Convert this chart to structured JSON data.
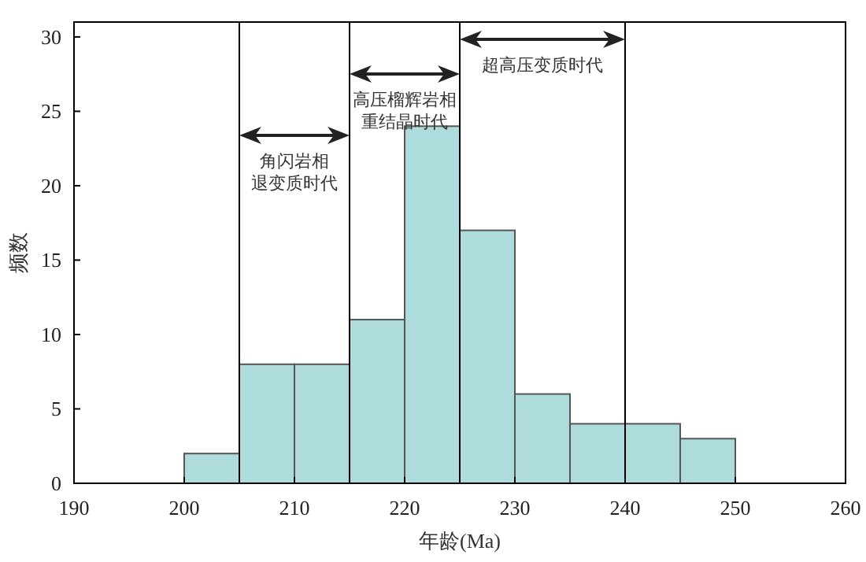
{
  "chart_data": {
    "type": "histogram",
    "bins": [
      200,
      205,
      210,
      215,
      220,
      225,
      230,
      235,
      240,
      245,
      250
    ],
    "values": [
      2,
      8,
      8,
      11,
      24,
      17,
      6,
      4,
      4,
      3
    ],
    "color": "#aedcdc",
    "xlim": [
      190,
      260
    ],
    "xticks": [
      190,
      200,
      210,
      220,
      230,
      240,
      250,
      260
    ],
    "ylim": [
      0,
      31
    ],
    "yticks": [
      0,
      5,
      10,
      15,
      20,
      25,
      30
    ],
    "xlabel": "年龄(Ma)",
    "ylabel": "频数",
    "ref_lines": [
      {
        "axis": "x",
        "value": 205,
        "color": "#000000"
      },
      {
        "axis": "x",
        "value": 215,
        "color": "#000000"
      },
      {
        "axis": "x",
        "value": 225,
        "color": "#000000"
      },
      {
        "axis": "x",
        "value": 240,
        "color": "#000000"
      }
    ],
    "annotations": [
      "角闪岩相退变质时代",
      "高压榴辉岩相重结晶时代",
      "超高压变质时代"
    ]
  }
}
